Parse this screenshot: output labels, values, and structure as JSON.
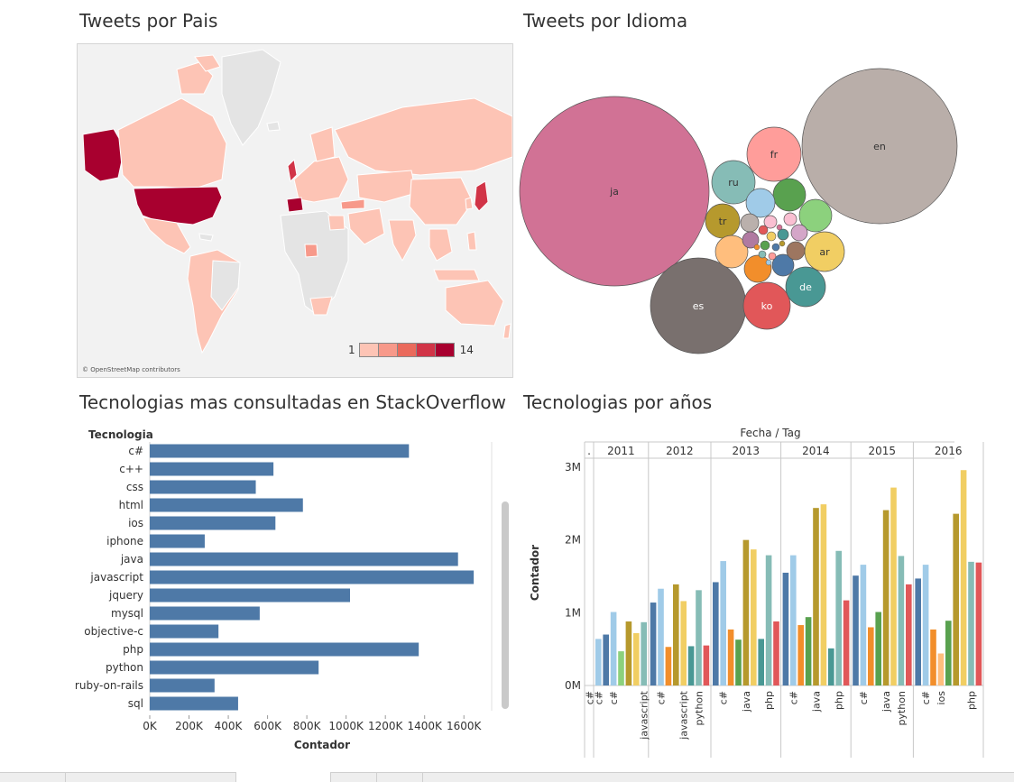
{
  "titles": {
    "country": "Tweets por Pais",
    "language": "Tweets por Idioma",
    "stack": "Tecnologias mas consultadas en StackOverflow",
    "years": "Tecnologias por años"
  },
  "map": {
    "credit": "© OpenStreetMap contributors",
    "legend": {
      "min": "1",
      "max": "14",
      "colors": [
        "#fdc4b5",
        "#f7998a",
        "#ea6a5c",
        "#d13447",
        "#a8002f"
      ]
    },
    "land_color": "#e4e4e4",
    "sea_color": "#f2f2f2"
  },
  "bubbles": {
    "colors": {
      "ja": "#d17295",
      "en": "#b9aea9",
      "es": "#79706e",
      "fr": "#ff9d9a",
      "ru": "#86bcb6",
      "tr": "#b6992d",
      "ar": "#f1ce63",
      "de": "#499894",
      "ko": "#e15759"
    }
  },
  "chart_data": [
    {
      "type": "bar",
      "orientation": "horizontal",
      "title": "Tecnologias mas consultadas en StackOverflow",
      "ylabel": "Tecnologia",
      "xlabel": "Contador",
      "categories": [
        "c#",
        "c++",
        "css",
        "html",
        "ios",
        "iphone",
        "java",
        "javascript",
        "jquery",
        "mysql",
        "objective-c",
        "php",
        "python",
        "ruby-on-rails",
        "sql"
      ],
      "values": [
        1320000,
        630000,
        540000,
        780000,
        640000,
        280000,
        1570000,
        1650000,
        1020000,
        560000,
        350000,
        1370000,
        860000,
        330000,
        450000
      ],
      "xticks": [
        "0K",
        "200K",
        "400K",
        "600K",
        "800K",
        "1000K",
        "1200K",
        "1400K",
        "1600K"
      ],
      "xlim": [
        0,
        1700000
      ],
      "color": "#4e79a7"
    },
    {
      "type": "bar",
      "title": "Tecnologias por años",
      "header": "Fecha / Tag",
      "ylabel": "Contador",
      "yticks": [
        "0M",
        "1M",
        "2M",
        "3M"
      ],
      "ylim": [
        0,
        3000000
      ],
      "years": [
        {
          "label": ".",
          "bars": [
            {
              "tag": "c#",
              "value": 0
            }
          ]
        },
        {
          "label": "2011",
          "bars": [
            {
              "tag": "c#",
              "value": 640000,
              "color": "#a0cbe8"
            },
            {
              "tag": "",
              "value": 700000,
              "color": "#4e79a7"
            },
            {
              "tag": "c#",
              "value": 1010000,
              "color": "#a0cbe8"
            },
            {
              "tag": "",
              "value": 470000,
              "color": "#8cd17d"
            },
            {
              "tag": "",
              "value": 880000,
              "color": "#b6992d"
            },
            {
              "tag": "",
              "value": 720000,
              "color": "#f1ce63"
            },
            {
              "tag": "javascript",
              "value": 870000,
              "color": "#86bcb6"
            }
          ]
        },
        {
          "label": "2012",
          "bars": [
            {
              "tag": "",
              "value": 1140000,
              "color": "#4e79a7"
            },
            {
              "tag": "c#",
              "value": 1330000,
              "color": "#a0cbe8"
            },
            {
              "tag": "",
              "value": 530000,
              "color": "#f28e2b"
            },
            {
              "tag": "",
              "value": 1390000,
              "color": "#b6992d"
            },
            {
              "tag": "javascript",
              "value": 1160000,
              "color": "#f1ce63"
            },
            {
              "tag": "",
              "value": 540000,
              "color": "#499894"
            },
            {
              "tag": "python",
              "value": 1310000,
              "color": "#86bcb6"
            },
            {
              "tag": "",
              "value": 550000,
              "color": "#e15759"
            }
          ]
        },
        {
          "label": "2013",
          "bars": [
            {
              "tag": "",
              "value": 1420000,
              "color": "#4e79a7"
            },
            {
              "tag": "c#",
              "value": 1710000,
              "color": "#a0cbe8"
            },
            {
              "tag": "",
              "value": 770000,
              "color": "#f28e2b"
            },
            {
              "tag": "",
              "value": 630000,
              "color": "#59a14f"
            },
            {
              "tag": "java",
              "value": 2000000,
              "color": "#b6992d"
            },
            {
              "tag": "",
              "value": 1870000,
              "color": "#f1ce63"
            },
            {
              "tag": "",
              "value": 640000,
              "color": "#499894"
            },
            {
              "tag": "php",
              "value": 1790000,
              "color": "#86bcb6"
            },
            {
              "tag": "",
              "value": 880000,
              "color": "#e15759"
            }
          ]
        },
        {
          "label": "2014",
          "bars": [
            {
              "tag": "",
              "value": 1550000,
              "color": "#4e79a7"
            },
            {
              "tag": "c#",
              "value": 1790000,
              "color": "#a0cbe8"
            },
            {
              "tag": "",
              "value": 830000,
              "color": "#f28e2b"
            },
            {
              "tag": "",
              "value": 940000,
              "color": "#59a14f"
            },
            {
              "tag": "java",
              "value": 2440000,
              "color": "#b6992d"
            },
            {
              "tag": "",
              "value": 2490000,
              "color": "#f1ce63"
            },
            {
              "tag": "",
              "value": 510000,
              "color": "#499894"
            },
            {
              "tag": "php",
              "value": 1850000,
              "color": "#86bcb6"
            },
            {
              "tag": "",
              "value": 1170000,
              "color": "#e15759"
            }
          ]
        },
        {
          "label": "2015",
          "bars": [
            {
              "tag": "",
              "value": 1510000,
              "color": "#4e79a7"
            },
            {
              "tag": "c#",
              "value": 1660000,
              "color": "#a0cbe8"
            },
            {
              "tag": "",
              "value": 800000,
              "color": "#f28e2b"
            },
            {
              "tag": "",
              "value": 1010000,
              "color": "#59a14f"
            },
            {
              "tag": "java",
              "value": 2410000,
              "color": "#b6992d"
            },
            {
              "tag": "",
              "value": 2720000,
              "color": "#f1ce63"
            },
            {
              "tag": "python",
              "value": 1780000,
              "color": "#86bcb6"
            },
            {
              "tag": "",
              "value": 1390000,
              "color": "#e15759"
            }
          ]
        },
        {
          "label": "2016",
          "bars": [
            {
              "tag": "",
              "value": 1470000,
              "color": "#4e79a7"
            },
            {
              "tag": "c#",
              "value": 1660000,
              "color": "#a0cbe8"
            },
            {
              "tag": "",
              "value": 770000,
              "color": "#f28e2b"
            },
            {
              "tag": "ios",
              "value": 440000,
              "color": "#ffbe7d"
            },
            {
              "tag": "",
              "value": 890000,
              "color": "#59a14f"
            },
            {
              "tag": "",
              "value": 2360000,
              "color": "#b6992d"
            },
            {
              "tag": "",
              "value": 2960000,
              "color": "#f1ce63"
            },
            {
              "tag": "php",
              "value": 1700000,
              "color": "#86bcb6"
            },
            {
              "tag": "",
              "value": 1690000,
              "color": "#e15759"
            }
          ]
        }
      ]
    }
  ]
}
